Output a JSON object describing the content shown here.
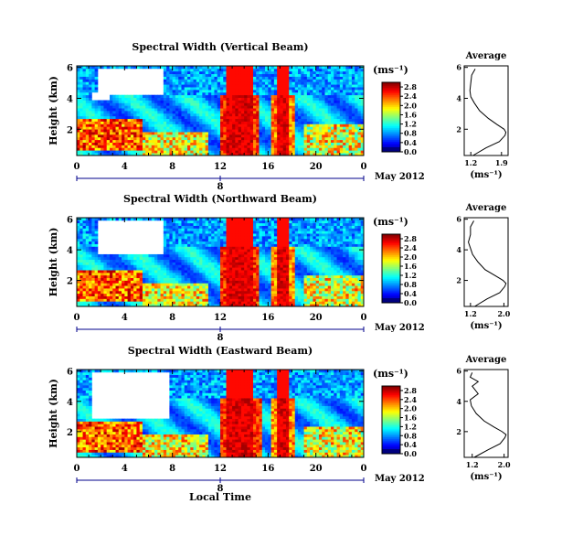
{
  "units_label": "(ms⁻¹)",
  "date_label": "May 2012",
  "day_label": "8",
  "local_time_label": "Local Time",
  "chart_data": [
    {
      "type": "heatmap",
      "title": "Spectral Width (Vertical Beam)",
      "ylabel": "Height (km)",
      "xlabel": "Local Time",
      "xlim": [
        0,
        24
      ],
      "ylim": [
        0.3,
        6.1
      ],
      "xticks": [
        "0",
        "4",
        "8",
        "12",
        "16",
        "20",
        "0"
      ],
      "yticks": [
        "2",
        "4",
        "6"
      ],
      "colorbar": {
        "label": "(ms⁻¹)",
        "ticks": [
          "0.0",
          "0.4",
          "0.8",
          "1.2",
          "1.6",
          "2.0",
          "2.4",
          "2.8"
        ],
        "range": [
          0,
          3.0
        ]
      },
      "profile": {
        "title": "Average",
        "xlabel": "(ms⁻¹)",
        "xticks": [
          "1.2",
          "1.9"
        ],
        "xlim": [
          1.05,
          2.05
        ],
        "height": [
          0.3,
          0.8,
          1.2,
          1.6,
          1.8,
          2.0,
          2.3,
          2.7,
          3.2,
          3.7,
          4.1,
          4.5,
          5.0,
          5.5,
          5.9
        ],
        "value": [
          1.25,
          1.55,
          1.85,
          1.98,
          2.0,
          1.96,
          1.8,
          1.6,
          1.4,
          1.28,
          1.2,
          1.18,
          1.2,
          1.22,
          1.3
        ]
      }
    },
    {
      "type": "heatmap",
      "title": "Spectral Width (Northward Beam)",
      "ylabel": "Height (km)",
      "xlabel": "Local Time",
      "xlim": [
        0,
        24
      ],
      "ylim": [
        0.3,
        6.1
      ],
      "xticks": [
        "0",
        "4",
        "8",
        "12",
        "16",
        "20",
        "0"
      ],
      "yticks": [
        "2",
        "4",
        "6"
      ],
      "colorbar": {
        "label": "(ms⁻¹)",
        "ticks": [
          "0.0",
          "0.4",
          "0.8",
          "1.2",
          "1.6",
          "2.0",
          "2.4",
          "2.8"
        ],
        "range": [
          0,
          3.0
        ]
      },
      "profile": {
        "title": "Average",
        "xlabel": "(ms⁻¹)",
        "xticks": [
          "1.2",
          "2.0"
        ],
        "xlim": [
          1.05,
          2.1
        ],
        "height": [
          0.3,
          0.8,
          1.2,
          1.6,
          1.8,
          2.0,
          2.3,
          2.7,
          3.2,
          3.7,
          4.1,
          4.5,
          5.0,
          5.5,
          5.9
        ],
        "value": [
          1.3,
          1.6,
          1.9,
          2.02,
          2.05,
          1.98,
          1.8,
          1.55,
          1.38,
          1.25,
          1.2,
          1.15,
          1.2,
          1.2,
          1.28
        ]
      }
    },
    {
      "type": "heatmap",
      "title": "Spectral Width (Eastward Beam)",
      "ylabel": "Height (km)",
      "xlabel": "Local Time",
      "xlim": [
        0,
        24
      ],
      "ylim": [
        0.3,
        6.1
      ],
      "xticks": [
        "0",
        "4",
        "8",
        "12",
        "16",
        "20",
        "0"
      ],
      "yticks": [
        "2",
        "4",
        "6"
      ],
      "colorbar": {
        "label": "(ms⁻¹)",
        "ticks": [
          "0.0",
          "0.4",
          "0.8",
          "1.2",
          "1.6",
          "2.0",
          "2.4",
          "2.8"
        ],
        "range": [
          0,
          3.0
        ]
      },
      "profile": {
        "title": "Average",
        "xlabel": "(ms⁻¹)",
        "xticks": [
          "1.2",
          "2.0"
        ],
        "xlim": [
          1.0,
          2.1
        ],
        "height": [
          0.3,
          0.8,
          1.2,
          1.6,
          1.8,
          2.0,
          2.3,
          2.7,
          3.2,
          3.7,
          4.1,
          4.5,
          5.0,
          5.3,
          5.6,
          5.9
        ],
        "value": [
          1.25,
          1.6,
          1.9,
          2.02,
          2.05,
          1.95,
          1.75,
          1.5,
          1.3,
          1.18,
          1.15,
          1.35,
          1.2,
          1.35,
          1.15,
          1.2
        ]
      }
    }
  ]
}
